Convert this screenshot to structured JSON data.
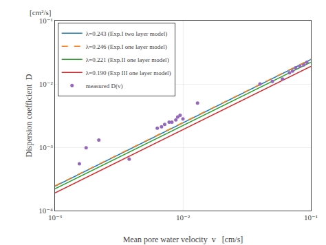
{
  "chart_data": {
    "type": "line",
    "xlabel": "Mean pore water velocity  v   [cm/s]",
    "ylabel": "Dispersion coefficient  D",
    "annotations": [
      "[cm²/s]"
    ],
    "log": true,
    "grid": true,
    "legend": "upper left",
    "xlim": [
      0.001,
      0.1
    ],
    "ylim": [
      0.0001,
      0.1
    ],
    "xticks": [
      {
        "value": 0.001,
        "label": "10⁻³"
      },
      {
        "value": 0.01,
        "label": "10⁻²"
      },
      {
        "value": 0.1,
        "label": "10⁻¹"
      }
    ],
    "yticks": [
      {
        "value": 0.0001,
        "label": "10⁻⁴"
      },
      {
        "value": 0.001,
        "label": "10⁻³"
      },
      {
        "value": 0.01,
        "label": "10⁻²"
      },
      {
        "value": 0.1,
        "label": "10⁻¹"
      }
    ],
    "series": [
      {
        "name": "λ=0.243 (Exp.I two layer model)",
        "type": "line",
        "line_style": "solid",
        "x": [
          0.001,
          0.1
        ],
        "values": [
          0.000243,
          0.0243
        ]
      },
      {
        "name": "λ=0.246 (Exp.I one layer model)",
        "type": "line",
        "line_style": "dashed",
        "x": [
          0.001,
          0.1
        ],
        "values": [
          0.000246,
          0.0246
        ]
      },
      {
        "name": "λ=0.221 (Exp.II one layer model)",
        "type": "line",
        "line_style": "solid",
        "x": [
          0.001,
          0.1
        ],
        "values": [
          0.000221,
          0.0221
        ]
      },
      {
        "name": "λ=0.190 (Exp III one layer model)",
        "type": "line",
        "line_style": "solid",
        "x": [
          0.001,
          0.1
        ],
        "values": [
          0.00019,
          0.019
        ]
      },
      {
        "name": "measured D(v)",
        "type": "scatter",
        "marker": "circle",
        "x": [
          0.00155,
          0.00175,
          0.0022,
          0.0038,
          0.0063,
          0.0068,
          0.0072,
          0.0078,
          0.0082,
          0.0088,
          0.0091,
          0.0095,
          0.01,
          0.013,
          0.04,
          0.05,
          0.06,
          0.068,
          0.072,
          0.076,
          0.082,
          0.088,
          0.093
        ],
        "values": [
          0.00055,
          0.00098,
          0.0013,
          0.00065,
          0.002,
          0.0021,
          0.0023,
          0.0025,
          0.0025,
          0.0027,
          0.003,
          0.0032,
          0.0028,
          0.005,
          0.01,
          0.011,
          0.012,
          0.015,
          0.016,
          0.018,
          0.019,
          0.02,
          0.022
        ]
      }
    ]
  }
}
